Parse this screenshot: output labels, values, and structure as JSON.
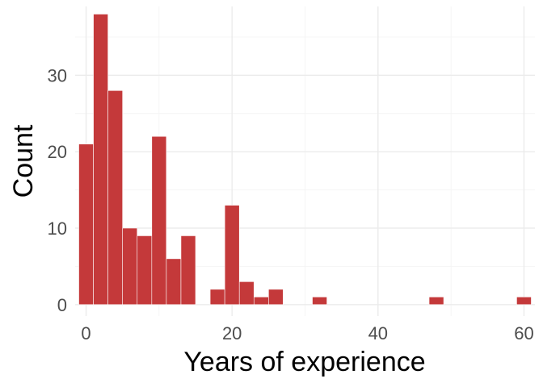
{
  "chart_data": {
    "type": "bar",
    "subtype": "histogram",
    "xlabel": "Years of experience",
    "ylabel": "Count",
    "xlim": [
      -1.5,
      61.5
    ],
    "ylim": [
      -1.5,
      39
    ],
    "x_ticks": [
      0,
      20,
      40,
      60
    ],
    "y_ticks": [
      0,
      10,
      20,
      30
    ],
    "grid": true,
    "bar_color": "#C4393A",
    "bins": [
      {
        "x0": -1,
        "x1": 1,
        "count": 21
      },
      {
        "x0": 1,
        "x1": 3,
        "count": 38
      },
      {
        "x0": 3,
        "x1": 5,
        "count": 28
      },
      {
        "x0": 5,
        "x1": 7,
        "count": 10
      },
      {
        "x0": 7,
        "x1": 9,
        "count": 9
      },
      {
        "x0": 9,
        "x1": 11,
        "count": 22
      },
      {
        "x0": 11,
        "x1": 13,
        "count": 6
      },
      {
        "x0": 13,
        "x1": 15,
        "count": 9
      },
      {
        "x0": 15,
        "x1": 17,
        "count": 0
      },
      {
        "x0": 17,
        "x1": 19,
        "count": 2
      },
      {
        "x0": 19,
        "x1": 21,
        "count": 13
      },
      {
        "x0": 21,
        "x1": 23,
        "count": 3
      },
      {
        "x0": 23,
        "x1": 25,
        "count": 1
      },
      {
        "x0": 25,
        "x1": 27,
        "count": 2
      },
      {
        "x0": 31,
        "x1": 33,
        "count": 1
      },
      {
        "x0": 47,
        "x1": 49,
        "count": 1
      },
      {
        "x0": 59,
        "x1": 61,
        "count": 1
      }
    ]
  }
}
